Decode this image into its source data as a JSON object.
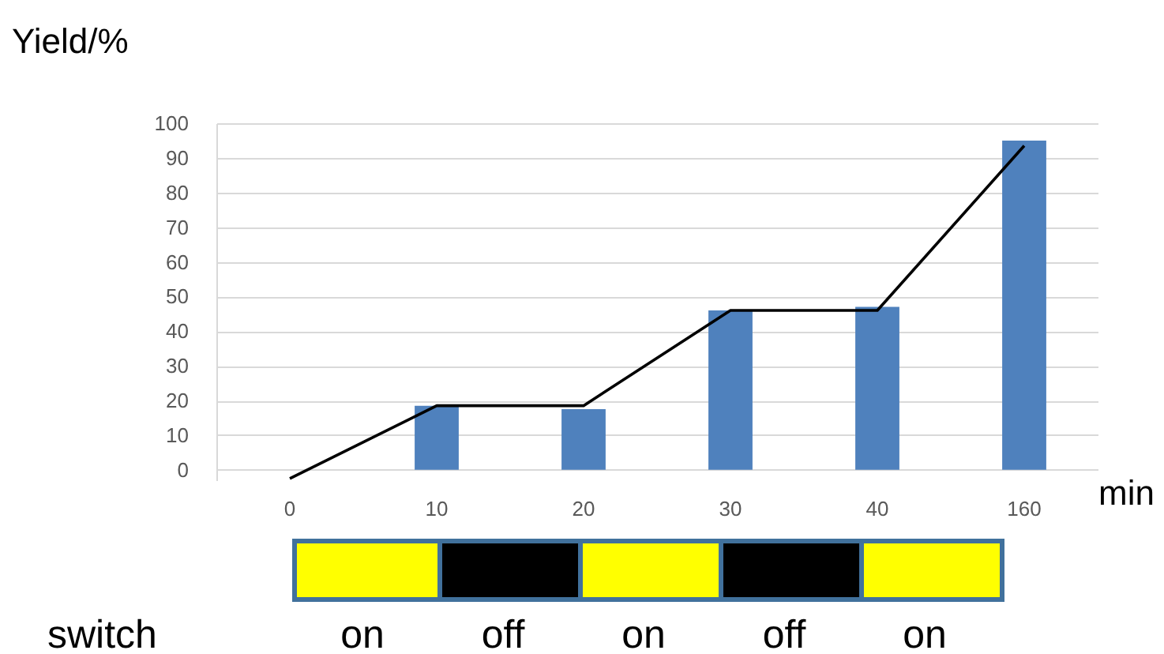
{
  "chart_data": {
    "type": "bar",
    "xlabel": "min",
    "ylabel": "Yield/%",
    "categories": [
      "0",
      "10",
      "20",
      "30",
      "40",
      "160"
    ],
    "series": [
      {
        "type": "bar",
        "color": "#4f81bd",
        "values": [
          null,
          18.5,
          17.5,
          46,
          47,
          95
        ]
      },
      {
        "type": "line",
        "color": "#000000",
        "values": [
          -2.5,
          18.5,
          18.5,
          46,
          46,
          93.5
        ]
      }
    ],
    "ylim": [
      -3,
      100
    ],
    "yticks": [
      0,
      10,
      20,
      30,
      40,
      50,
      60,
      70,
      80,
      90,
      100
    ],
    "grid": "y",
    "annotations": [
      "switch",
      "on",
      "off",
      "on",
      "off",
      "on"
    ]
  }
}
